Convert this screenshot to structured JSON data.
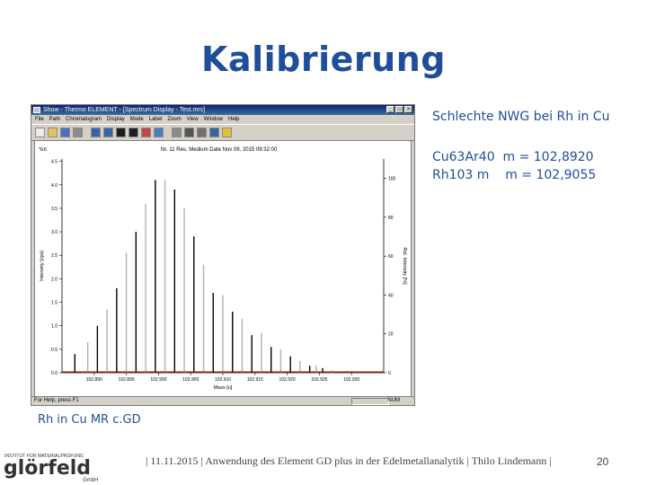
{
  "slide": {
    "title": "Kalibrierung",
    "side_heading": "Schlechte NWG bei Rh in Cu",
    "mass_line_1": "Cu63Ar40  m = 102,8920",
    "mass_line_2": "Rh103 m    m = 102,9055",
    "caption": "Rh in Cu MR c.GD",
    "footer": "| 11.11.2015 | Anwendung des Element GD plus in der Edelmetallanalytik | Thilo Lindemann |",
    "page_number": "20"
  },
  "logo": {
    "tagline": "INSTITUT FÜR MATERIALPRÜFUNG",
    "name": "glörfeld",
    "suffix": "GmbH"
  },
  "window": {
    "title": "Show - Thermo ELEMENT - [Spectrum Display - Test.mrs]",
    "menu": [
      "File",
      "Path",
      "Chromatogram",
      "Display",
      "Mode",
      "Label",
      "Zoom",
      "View",
      "Window",
      "Help"
    ],
    "toolbar_icons": [
      "new-icon",
      "open-icon",
      "save-icon",
      "print-icon",
      "zoom-in-icon",
      "zoom-out-icon",
      "peak-icon",
      "scale-icon",
      "overlay-icon",
      "export-icon",
      "calc-icon",
      "list-icon",
      "grid-icon",
      "info-icon",
      "help-icon"
    ],
    "status_left": "For Help, press F1",
    "status_right": "NUM",
    "colors": {
      "titlebar": "#0a246a",
      "bars": "#000000",
      "baseline": "#cc0000"
    }
  },
  "chart_data": {
    "type": "bar",
    "title": "Nr. 11  Res. Medium  Date Nov 09, 2015 09:32:00",
    "xlabel": "Mass [u]",
    "ylabel": "Intensity [cps]",
    "y2label": "Rel. Intensity [%]",
    "multiplier_label": "*E6",
    "xlim": [
      102.885,
      102.935
    ],
    "ylim": [
      0,
      4.55
    ],
    "y2lim": [
      0,
      110
    ],
    "x_ticks": [
      "102.890",
      "102.895",
      "102.900",
      "102.905",
      "102.910",
      "102.915",
      "102.920",
      "102.925",
      "102.930"
    ],
    "y_ticks": [
      "0.0",
      "0.5",
      "1.0",
      "1.5",
      "2.0",
      "2.5",
      "3.0",
      "3.5",
      "4.0",
      "4.5"
    ],
    "y2_ticks": [
      "0",
      "20",
      "40",
      "60",
      "80",
      "100"
    ],
    "x": [
      102.887,
      102.889,
      102.8905,
      102.892,
      102.8935,
      102.895,
      102.8965,
      102.898,
      102.8995,
      102.901,
      102.9025,
      102.904,
      102.9055,
      102.907,
      102.9085,
      102.91,
      102.9115,
      102.913,
      102.9145,
      102.916,
      102.9175,
      102.919,
      102.9205,
      102.922,
      102.9235,
      102.9245,
      102.9255,
      102.927
    ],
    "y": [
      0.4,
      0.65,
      1.0,
      1.35,
      1.8,
      2.55,
      3.0,
      3.6,
      4.1,
      4.1,
      3.9,
      3.5,
      2.9,
      2.3,
      1.7,
      1.65,
      1.3,
      1.15,
      0.8,
      0.85,
      0.55,
      0.5,
      0.35,
      0.25,
      0.15,
      0.15,
      0.1,
      0.05
    ],
    "grid": false
  }
}
